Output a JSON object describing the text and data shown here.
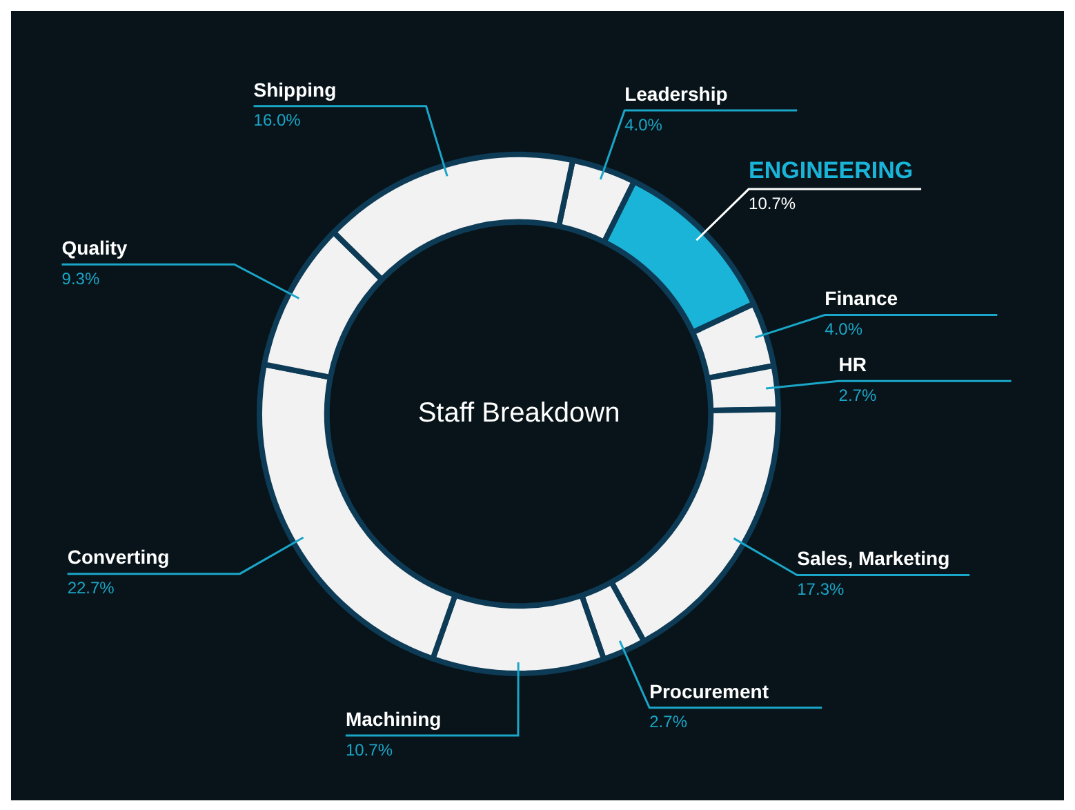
{
  "chart_data": {
    "type": "donut",
    "title": "Staff Breakdown",
    "categories": [
      "Leadership",
      "ENGINEERING",
      "Finance",
      "HR",
      "Sales, Marketing",
      "Procurement",
      "Machining",
      "Converting",
      "Quality",
      "Shipping"
    ],
    "values": [
      4.0,
      10.7,
      4.0,
      2.7,
      17.3,
      2.7,
      10.7,
      22.7,
      9.3,
      16.0
    ],
    "value_labels": [
      "4.0%",
      "10.7%",
      "4.0%",
      "2.7%",
      "17.3%",
      "2.7%",
      "10.7%",
      "22.7%",
      "9.3%",
      "16.0%"
    ],
    "colors": [
      "#f2f2f2",
      "#1ab4d8",
      "#f2f2f2",
      "#f2f2f2",
      "#f2f2f2",
      "#f2f2f2",
      "#f2f2f2",
      "#f2f2f2",
      "#f2f2f2",
      "#f2f2f2"
    ],
    "legend": false
  }
}
